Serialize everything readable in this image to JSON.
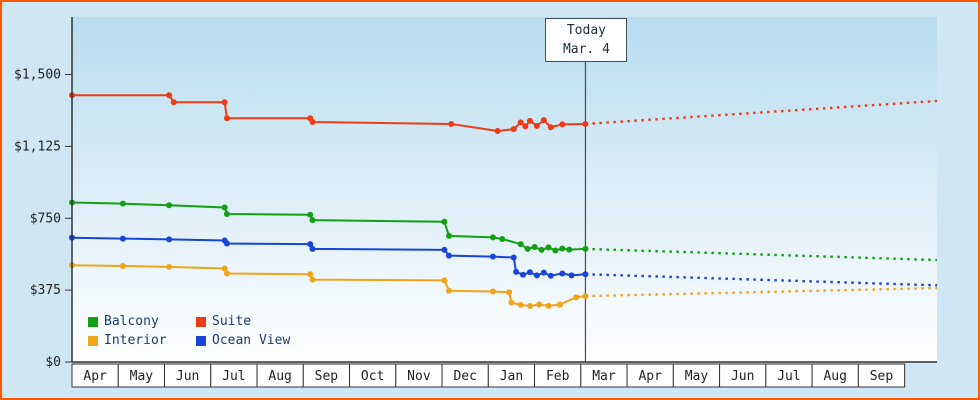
{
  "colors": {
    "border": "#ff5a00",
    "page_bg": "#cfe7f4",
    "plot_gradient_top": "#b8dcef",
    "plot_gradient_bottom": "#ffffff",
    "axis": "#333333",
    "text": "#222222",
    "legend_text": "#1a3c6e",
    "today": "#3d4f5f",
    "month_cell_bg": "#ffffff",
    "balcony": "#12a012",
    "suite": "#ee3b16",
    "interior": "#f0a41c",
    "ocean_view": "#1a44d8"
  },
  "y_axis": {
    "ticks": [
      {
        "label": "$0",
        "value": 0
      },
      {
        "label": "$375",
        "value": 375
      },
      {
        "label": "$750",
        "value": 750
      },
      {
        "label": "$1,125",
        "value": 1125
      },
      {
        "label": "$1,500",
        "value": 1500
      }
    ]
  },
  "x_axis": {
    "months": [
      "Apr",
      "May",
      "Jun",
      "Jul",
      "Aug",
      "Sep",
      "Oct",
      "Nov",
      "Dec",
      "Jan",
      "Feb",
      "Mar",
      "Apr",
      "May",
      "Jun",
      "Jul",
      "Aug",
      "Sep"
    ]
  },
  "today": {
    "line1": "Today",
    "line2": "Mar. 4",
    "x_months": 11.1
  },
  "legend": {
    "items": [
      {
        "label": "Balcony",
        "key": "balcony"
      },
      {
        "label": "Suite",
        "key": "suite"
      },
      {
        "label": "Interior",
        "key": "interior"
      },
      {
        "label": "Ocean View",
        "key": "ocean_view"
      }
    ]
  },
  "chart_data": {
    "type": "line",
    "x_unit": "months (0 = first Apr shown; fractional = day within month)",
    "xlim": [
      0,
      18.7
    ],
    "ylim": [
      0,
      1800
    ],
    "grid": false,
    "legend_position": "bottom-left inside plot",
    "today_marker": {
      "x": 11.1,
      "label": "Today Mar. 4"
    },
    "y_tick_values": [
      0,
      375,
      750,
      1125,
      1500
    ],
    "series": [
      {
        "key": "suite",
        "name": "Suite",
        "color_key": "suite",
        "solid": [
          [
            0,
            1392
          ],
          [
            2.1,
            1392
          ],
          [
            2.2,
            1355
          ],
          [
            3.3,
            1355
          ],
          [
            3.35,
            1272
          ],
          [
            5.15,
            1272
          ],
          [
            5.2,
            1252
          ],
          [
            8.2,
            1242
          ],
          [
            9.2,
            1205
          ],
          [
            9.55,
            1215
          ],
          [
            9.7,
            1250
          ],
          [
            9.8,
            1230
          ],
          [
            9.9,
            1258
          ],
          [
            10.05,
            1232
          ],
          [
            10.2,
            1262
          ],
          [
            10.35,
            1225
          ],
          [
            10.6,
            1240
          ],
          [
            11.1,
            1242
          ]
        ],
        "projected": [
          [
            11.1,
            1242
          ],
          [
            18.7,
            1362
          ]
        ]
      },
      {
        "key": "balcony",
        "name": "Balcony",
        "color_key": "balcony",
        "solid": [
          [
            0,
            832
          ],
          [
            1.1,
            826
          ],
          [
            2.1,
            818
          ],
          [
            3.3,
            806
          ],
          [
            3.35,
            772
          ],
          [
            5.15,
            768
          ],
          [
            5.2,
            740
          ],
          [
            8.05,
            732
          ],
          [
            8.15,
            658
          ],
          [
            9.1,
            650
          ],
          [
            9.3,
            642
          ],
          [
            9.7,
            615
          ],
          [
            9.85,
            590
          ],
          [
            10,
            600
          ],
          [
            10.15,
            585
          ],
          [
            10.3,
            598
          ],
          [
            10.45,
            582
          ],
          [
            10.6,
            592
          ],
          [
            10.75,
            586
          ],
          [
            11.1,
            590
          ]
        ],
        "projected": [
          [
            11.1,
            590
          ],
          [
            18.7,
            532
          ]
        ]
      },
      {
        "key": "ocean_view",
        "name": "Ocean View",
        "color_key": "ocean_view",
        "solid": [
          [
            0,
            648
          ],
          [
            1.1,
            644
          ],
          [
            2.1,
            640
          ],
          [
            3.3,
            634
          ],
          [
            3.35,
            618
          ],
          [
            5.15,
            615
          ],
          [
            5.2,
            590
          ],
          [
            8.05,
            585
          ],
          [
            8.15,
            555
          ],
          [
            9.1,
            550
          ],
          [
            9.55,
            545
          ],
          [
            9.6,
            470
          ],
          [
            9.75,
            455
          ],
          [
            9.9,
            468
          ],
          [
            10.05,
            452
          ],
          [
            10.2,
            466
          ],
          [
            10.35,
            450
          ],
          [
            10.6,
            462
          ],
          [
            10.8,
            452
          ],
          [
            11.1,
            458
          ]
        ],
        "projected": [
          [
            11.1,
            458
          ],
          [
            18.7,
            400
          ]
        ]
      },
      {
        "key": "interior",
        "name": "Interior",
        "color_key": "interior",
        "solid": [
          [
            0,
            505
          ],
          [
            1.1,
            501
          ],
          [
            2.1,
            496
          ],
          [
            3.3,
            488
          ],
          [
            3.35,
            462
          ],
          [
            5.15,
            458
          ],
          [
            5.2,
            430
          ],
          [
            8.05,
            426
          ],
          [
            8.15,
            372
          ],
          [
            9.1,
            368
          ],
          [
            9.45,
            364
          ],
          [
            9.5,
            310
          ],
          [
            9.7,
            298
          ],
          [
            9.9,
            292
          ],
          [
            10.1,
            300
          ],
          [
            10.3,
            293
          ],
          [
            10.55,
            300
          ],
          [
            10.9,
            338
          ],
          [
            11.1,
            344
          ]
        ],
        "projected": [
          [
            11.1,
            344
          ],
          [
            18.7,
            386
          ]
        ]
      }
    ]
  }
}
